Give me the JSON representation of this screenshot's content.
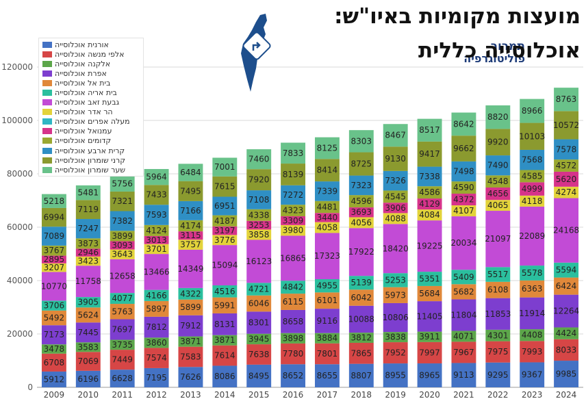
{
  "title": {
    "line1": "מועצות מקומיות באיו\"ש:",
    "line2": "אוכלוסייה כללית"
  },
  "logo": {
    "line1": "תמרור",
    "line2": "פוליטוגרפיה",
    "icon": "israel-map-with-sign-icon"
  },
  "chart_data": {
    "type": "bar",
    "stacked": true,
    "categories": [
      "2009",
      "2010",
      "2011",
      "2012",
      "2013",
      "2014",
      "2015",
      "2016",
      "2017",
      "2018",
      "2019",
      "2020",
      "2021",
      "2022",
      "2023",
      "2024"
    ],
    "ylim": [
      0,
      120000
    ],
    "yticks": [
      0,
      20000,
      40000,
      60000,
      80000,
      100000,
      120000
    ],
    "grid": true,
    "legend_position": "top-left",
    "series": [
      {
        "name": "אורנית אוכלוסייה",
        "color": "#4472c4",
        "values": [
          5912,
          6196,
          6628,
          7195,
          7626,
          8086,
          8495,
          8652,
          8655,
          8807,
          8955,
          8965,
          9113,
          9295,
          9367,
          9985
        ]
      },
      {
        "name": "אלפי מנשה אוכלוסייה",
        "color": "#d64646",
        "values": [
          6708,
          7069,
          7449,
          7574,
          7583,
          7614,
          7638,
          7780,
          7801,
          7865,
          7952,
          7997,
          7967,
          7975,
          7993,
          8033
        ]
      },
      {
        "name": "אלקנה אוכלוסייה",
        "color": "#5ca64a",
        "values": [
          3478,
          3583,
          3735,
          3860,
          3871,
          3871,
          3945,
          3898,
          3884,
          3812,
          3838,
          3911,
          4071,
          4301,
          4408,
          4424
        ]
      },
      {
        "name": "אפרת אוכלוסייה",
        "color": "#7d3ecf",
        "values": [
          7173,
          7445,
          7697,
          7812,
          7912,
          8131,
          8301,
          8658,
          9116,
          10088,
          10806,
          11405,
          11804,
          11853,
          11914,
          12264
        ]
      },
      {
        "name": "בית אל אוכלוסייה",
        "color": "#e0883a",
        "values": [
          5492,
          5624,
          5763,
          5897,
          5899,
          5991,
          6046,
          6115,
          6101,
          6042,
          5973,
          5684,
          5682,
          6108,
          6363,
          6424
        ]
      },
      {
        "name": "בית אריה אוכלוסייה",
        "color": "#2bbf9e",
        "values": [
          3706,
          3905,
          4077,
          4166,
          4322,
          4516,
          4721,
          4842,
          4955,
          5139,
          5253,
          5351,
          5409,
          5517,
          5578,
          5594
        ]
      },
      {
        "name": "גבעת זאב אוכלוסייה",
        "color": "#c24bd6",
        "values": [
          10770,
          11758,
          12658,
          13466,
          14349,
          15094,
          16123,
          16865,
          17323,
          17922,
          18420,
          19225,
          20034,
          21097,
          22089,
          24168
        ]
      },
      {
        "name": "הר אדר אוכלוסייה",
        "color": "#e3d33a",
        "values": [
          3207,
          3423,
          3643,
          3701,
          3757,
          3776,
          3858,
          3980,
          4058,
          4056,
          4088,
          4084,
          4107,
          4065,
          4118,
          4274
        ]
      },
      {
        "name": "מעלה אפרים אוכלוסייה",
        "color": "#2fb6c4",
        "values": [
          0,
          0,
          0,
          0,
          0,
          0,
          0,
          0,
          0,
          0,
          0,
          0,
          0,
          0,
          0,
          0
        ]
      },
      {
        "name": "עמנואל אוכלוסייה",
        "color": "#d6338a",
        "values": [
          2895,
          2946,
          3093,
          3013,
          3115,
          3197,
          3253,
          3309,
          3440,
          3693,
          3906,
          4129,
          4372,
          4656,
          4999,
          5620
        ]
      },
      {
        "name": "קדומים אוכלוסייה",
        "color": "#9aa830",
        "values": [
          3767,
          3873,
          3899,
          4124,
          4174,
          4187,
          4338,
          4323,
          4481,
          4596,
          4545,
          4586,
          4590,
          4548,
          4585,
          4572
        ]
      },
      {
        "name": "קרית ארבע אוכלוסייה",
        "color": "#2f8fc4",
        "values": [
          7089,
          7247,
          7382,
          7593,
          7166,
          6951,
          7108,
          7272,
          7339,
          7323,
          7326,
          7338,
          7498,
          7490,
          7568,
          7578
        ]
      },
      {
        "name": "קרני שומרון אוכלוסייה",
        "color": "#8b9a2f",
        "values": [
          6994,
          7119,
          7321,
          7433,
          7495,
          7615,
          7920,
          8139,
          8414,
          8725,
          9130,
          9417,
          9662,
          9920,
          10103,
          10572
        ]
      },
      {
        "name": "שער שומרון אוכלוסייה",
        "color": "#69c28a",
        "values": [
          5218,
          5481,
          5756,
          5964,
          6484,
          7001,
          7460,
          7833,
          8125,
          8303,
          8467,
          8517,
          8642,
          8820,
          8966,
          8763
        ]
      }
    ]
  }
}
